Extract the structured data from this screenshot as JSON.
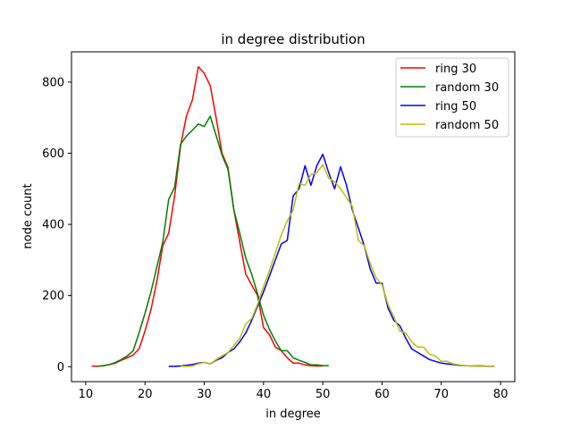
{
  "chart_data": {
    "type": "line",
    "title": "in degree distribution",
    "xlabel": "in degree",
    "ylabel": "node count",
    "xlim": [
      7.6,
      82.4
    ],
    "ylim": [
      -42,
      885
    ],
    "xticks": [
      10,
      20,
      30,
      40,
      50,
      60,
      70,
      80
    ],
    "yticks": [
      0,
      200,
      400,
      600,
      800
    ],
    "grid": false,
    "legend_position": "top-right",
    "series": [
      {
        "name": "ring 30",
        "color": "#ff0000",
        "x": [
          11,
          12,
          13,
          14,
          15,
          16,
          17,
          18,
          19,
          20,
          21,
          22,
          23,
          24,
          25,
          26,
          27,
          28,
          29,
          30,
          31,
          32,
          33,
          34,
          35,
          36,
          37,
          38,
          39,
          40,
          41,
          42,
          43,
          44,
          45,
          46,
          47,
          48,
          49,
          50
        ],
        "y": [
          2,
          1,
          3,
          6,
          10,
          18,
          25,
          33,
          50,
          100,
          160,
          240,
          340,
          375,
          480,
          620,
          705,
          750,
          843,
          825,
          790,
          700,
          600,
          560,
          440,
          350,
          260,
          230,
          200,
          110,
          90,
          55,
          45,
          25,
          10,
          10,
          5,
          3,
          2,
          2
        ]
      },
      {
        "name": "random 30",
        "color": "#008000",
        "x": [
          12,
          13,
          14,
          15,
          16,
          17,
          18,
          19,
          20,
          21,
          22,
          23,
          24,
          25,
          26,
          27,
          28,
          29,
          30,
          31,
          32,
          33,
          34,
          35,
          36,
          37,
          38,
          39,
          40,
          41,
          42,
          43,
          44,
          45,
          46,
          47,
          48,
          49,
          50,
          51
        ],
        "y": [
          1,
          3,
          6,
          12,
          20,
          30,
          45,
          95,
          150,
          210,
          280,
          350,
          470,
          505,
          625,
          648,
          665,
          682,
          675,
          704,
          650,
          595,
          555,
          440,
          375,
          305,
          260,
          205,
          145,
          105,
          72,
          45,
          45,
          25,
          18,
          12,
          5,
          5,
          3,
          3
        ]
      },
      {
        "name": "ring 50",
        "color": "#0000ff",
        "x": [
          24,
          25,
          26,
          27,
          28,
          29,
          30,
          31,
          32,
          33,
          34,
          35,
          36,
          37,
          38,
          39,
          40,
          41,
          42,
          43,
          44,
          45,
          46,
          47,
          48,
          49,
          50,
          51,
          52,
          53,
          54,
          55,
          56,
          57,
          58,
          59,
          60,
          61,
          62,
          63,
          64,
          65,
          66,
          67,
          68,
          69,
          70,
          71,
          72,
          73,
          74,
          75,
          76,
          77,
          78,
          79
        ],
        "y": [
          1,
          1,
          2,
          4,
          6,
          10,
          12,
          8,
          18,
          25,
          40,
          50,
          70,
          95,
          130,
          170,
          210,
          255,
          300,
          345,
          355,
          480,
          500,
          565,
          510,
          565,
          597,
          545,
          500,
          562,
          510,
          440,
          390,
          340,
          275,
          235,
          235,
          165,
          130,
          115,
          80,
          50,
          40,
          30,
          20,
          15,
          10,
          8,
          6,
          4,
          3,
          2,
          2,
          2,
          1,
          1
        ]
      },
      {
        "name": "random 50",
        "color": "#bfbf00",
        "x": [
          26,
          27,
          28,
          29,
          30,
          31,
          32,
          33,
          34,
          35,
          36,
          37,
          38,
          39,
          40,
          41,
          42,
          43,
          44,
          45,
          46,
          47,
          48,
          49,
          50,
          51,
          52,
          53,
          54,
          55,
          56,
          57,
          58,
          59,
          60,
          61,
          62,
          63,
          64,
          65,
          66,
          67,
          68,
          69,
          70,
          71,
          72,
          73,
          74,
          75,
          76,
          77,
          78,
          79
        ],
        "y": [
          1,
          1,
          2,
          8,
          12,
          8,
          20,
          30,
          40,
          60,
          80,
          120,
          135,
          175,
          225,
          270,
          320,
          370,
          410,
          440,
          515,
          510,
          540,
          545,
          568,
          530,
          520,
          500,
          475,
          450,
          355,
          340,
          290,
          250,
          230,
          175,
          140,
          100,
          95,
          70,
          55,
          55,
          35,
          30,
          15,
          15,
          8,
          5,
          3,
          2,
          1,
          1,
          1,
          1
        ]
      }
    ]
  }
}
